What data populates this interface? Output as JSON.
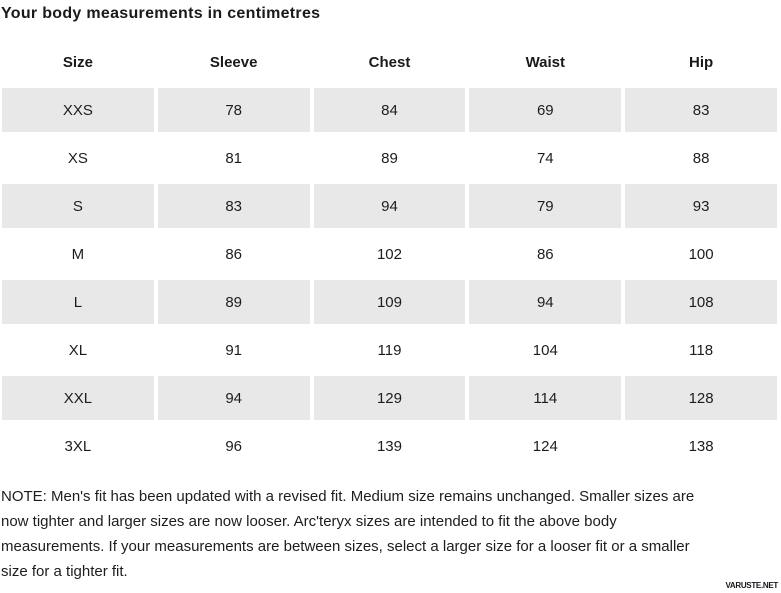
{
  "title": "Your body measurements in centimetres",
  "table": {
    "headers": [
      "Size",
      "Sleeve",
      "Chest",
      "Waist",
      "Hip"
    ],
    "rows": [
      {
        "size": "XXS",
        "values": [
          "78",
          "84",
          "69",
          "83"
        ],
        "shaded": true
      },
      {
        "size": "XS",
        "values": [
          "81",
          "89",
          "74",
          "88"
        ],
        "shaded": false
      },
      {
        "size": "S",
        "values": [
          "83",
          "94",
          "79",
          "93"
        ],
        "shaded": true
      },
      {
        "size": "M",
        "values": [
          "86",
          "102",
          "86",
          "100"
        ],
        "shaded": false
      },
      {
        "size": "L",
        "values": [
          "89",
          "109",
          "94",
          "108"
        ],
        "shaded": true
      },
      {
        "size": "XL",
        "values": [
          "91",
          "119",
          "104",
          "118"
        ],
        "shaded": false
      },
      {
        "size": "XXL",
        "values": [
          "94",
          "129",
          "114",
          "128"
        ],
        "shaded": true
      },
      {
        "size": "3XL",
        "values": [
          "96",
          "139",
          "124",
          "138"
        ],
        "shaded": false
      }
    ]
  },
  "note_lines": [
    "NOTE: Men's fit has been updated with a revised fit. Medium size remains unchanged. Smaller sizes are",
    "now tighter and larger sizes are now looser. Arc'teryx sizes are intended to fit the above body",
    "measurements. If your measurements are between sizes, select a larger size for a looser fit or a smaller",
    "size for a tighter fit."
  ],
  "watermark": "VARUSTE.NET",
  "colors": {
    "row_shade": "#e8e8e8",
    "text_primary": "#1d1d1d",
    "background": "#ffffff"
  }
}
